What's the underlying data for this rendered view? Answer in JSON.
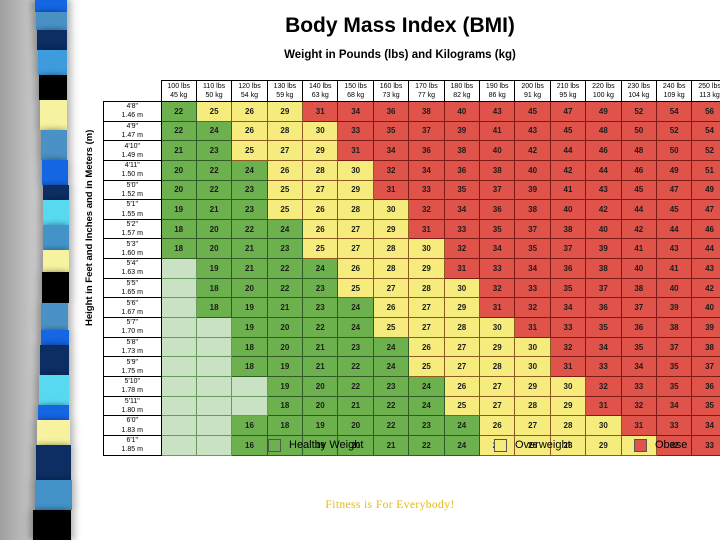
{
  "header": {
    "title": "Body Mass Index (BMI)",
    "subtitle": "Weight in Pounds (lbs) and Kilograms (kg)"
  },
  "footer": {
    "tagline": "Fitness is For Everybody!"
  },
  "decoration": {
    "ribbon_segments": [
      [
        "#1566e3",
        12
      ],
      [
        "#4a92c6",
        18
      ],
      [
        "#0d2e63",
        20
      ],
      [
        "#3e9cdc",
        25
      ],
      [
        "#000000",
        25
      ],
      [
        "#f6f2a0",
        30
      ],
      [
        "#4a92c6",
        30
      ],
      [
        "#1566e3",
        25
      ],
      [
        "#0d2e63",
        15
      ],
      [
        "#57d9f2",
        25
      ],
      [
        "#4393c9",
        25
      ],
      [
        "#f6f2a0",
        22
      ],
      [
        "#000000",
        31
      ],
      [
        "#4a92c6",
        27
      ],
      [
        "#1566e3",
        15
      ],
      [
        "#0d2e63",
        30
      ],
      [
        "#57d9f2",
        30
      ],
      [
        "#1566e3",
        15
      ],
      [
        "#f6f2a0",
        25
      ],
      [
        "#0d2e63",
        35
      ],
      [
        "#4393c9",
        30
      ],
      [
        "#000000",
        30
      ]
    ]
  },
  "chart_data": {
    "type": "table",
    "title": "Body Mass Index (BMI)",
    "subtitle": "Weight in Pounds (lbs) and Kilograms (kg)",
    "y_axis_label": "Height in Feet and Inches and in Meters (m)",
    "weight_columns": [
      [
        "100 lbs",
        "45 kg"
      ],
      [
        "110 lbs",
        "50 kg"
      ],
      [
        "120 lbs",
        "54 kg"
      ],
      [
        "130 lbs",
        "59 kg"
      ],
      [
        "140 lbs",
        "63 kg"
      ],
      [
        "150 lbs",
        "68 kg"
      ],
      [
        "160 lbs",
        "73 kg"
      ],
      [
        "170 lbs",
        "77 kg"
      ],
      [
        "180 lbs",
        "82 kg"
      ],
      [
        "190 lbs",
        "86 kg"
      ],
      [
        "200 lbs",
        "91 kg"
      ],
      [
        "210 lbs",
        "95 kg"
      ],
      [
        "220 lbs",
        "100 kg"
      ],
      [
        "230 lbs",
        "104 kg"
      ],
      [
        "240 lbs",
        "109 kg"
      ],
      [
        "250 lbs",
        "113 kg"
      ]
    ],
    "zone_colors": {
      "g": "#6db14f",
      "y": "#f6ec7d",
      "r": "#e0534a",
      "p": "#c9e2c4",
      "e": "#6db14f"
    },
    "rows": [
      {
        "ft": "4'8\"",
        "m": "1.46 m",
        "bmi": [
          22,
          25,
          26,
          29,
          31,
          34,
          36,
          38,
          40,
          43,
          45,
          47,
          49,
          52,
          54,
          56
        ],
        "zones": "gyyyrrrrrrrrrrrr"
      },
      {
        "ft": "4'9\"",
        "m": "1.47 m",
        "bmi": [
          22,
          24,
          26,
          28,
          30,
          33,
          35,
          37,
          39,
          41,
          43,
          45,
          48,
          50,
          52,
          54
        ],
        "zones": "ggyyyrrrrrrrrrrr"
      },
      {
        "ft": "4'10\"",
        "m": "1.49 m",
        "bmi": [
          21,
          23,
          25,
          27,
          29,
          31,
          34,
          36,
          38,
          40,
          42,
          44,
          46,
          48,
          50,
          52
        ],
        "zones": "ggyyyrrrrrrrrrrr"
      },
      {
        "ft": "4'11\"",
        "m": "1.50 m",
        "bmi": [
          20,
          22,
          24,
          26,
          28,
          30,
          32,
          34,
          36,
          38,
          40,
          42,
          44,
          46,
          49,
          51
        ],
        "zones": "gggyyyrrrrrrrrrr"
      },
      {
        "ft": "5'0\"",
        "m": "1.52 m",
        "bmi": [
          20,
          22,
          23,
          25,
          27,
          29,
          31,
          33,
          35,
          37,
          39,
          41,
          43,
          45,
          47,
          49
        ],
        "zones": "gggyyyrrrrrrrrrr"
      },
      {
        "ft": "5'1\"",
        "m": "1.55 m",
        "bmi": [
          19,
          21,
          23,
          25,
          26,
          28,
          30,
          32,
          34,
          36,
          38,
          40,
          42,
          44,
          45,
          47
        ],
        "zones": "gggyyyyrrrrrrrrr"
      },
      {
        "ft": "5'2\"",
        "m": "1.57 m",
        "bmi": [
          18,
          20,
          22,
          24,
          26,
          27,
          29,
          31,
          33,
          35,
          37,
          38,
          40,
          42,
          44,
          46
        ],
        "zones": "ggggyyyrrrrrrrrr"
      },
      {
        "ft": "5'3\"",
        "m": "1.60 m",
        "bmi": [
          18,
          20,
          21,
          23,
          25,
          27,
          28,
          30,
          32,
          34,
          35,
          37,
          39,
          41,
          43,
          44
        ],
        "zones": "ggggyyyyrrrrrrrr"
      },
      {
        "ft": "5'4\"",
        "m": "1.63 m",
        "bmi": [
          null,
          19,
          21,
          22,
          24,
          26,
          28,
          29,
          31,
          33,
          34,
          36,
          38,
          40,
          41,
          43
        ],
        "zones": "pggggyyyrrrrrrrr"
      },
      {
        "ft": "5'5\"",
        "m": "1.65 m",
        "bmi": [
          null,
          18,
          20,
          22,
          23,
          25,
          27,
          28,
          30,
          32,
          33,
          35,
          37,
          38,
          40,
          42
        ],
        "zones": "pggggyyyyrrrrrrr"
      },
      {
        "ft": "5'6\"",
        "m": "1.67 m",
        "bmi": [
          null,
          18,
          19,
          21,
          23,
          24,
          26,
          27,
          29,
          31,
          32,
          34,
          36,
          37,
          39,
          40
        ],
        "zones": "pgggggyyyrrrrrrr"
      },
      {
        "ft": "5'7\"",
        "m": "1.70 m",
        "bmi": [
          null,
          null,
          19,
          20,
          22,
          24,
          25,
          27,
          28,
          30,
          31,
          33,
          35,
          36,
          38,
          39
        ],
        "zones": "ppggggyyyyrrrrrr"
      },
      {
        "ft": "5'8\"",
        "m": "1.73 m",
        "bmi": [
          null,
          null,
          18,
          20,
          21,
          23,
          24,
          26,
          27,
          29,
          30,
          32,
          34,
          35,
          37,
          38
        ],
        "zones": "ppgggggyyyyrrrrr"
      },
      {
        "ft": "5'9\"",
        "m": "1.75 m",
        "bmi": [
          null,
          null,
          18,
          19,
          21,
          22,
          24,
          25,
          27,
          28,
          30,
          31,
          33,
          34,
          35,
          37
        ],
        "zones": "ppgggggyyyyrrrrr"
      },
      {
        "ft": "5'10\"",
        "m": "1.78 m",
        "bmi": [
          null,
          null,
          null,
          19,
          20,
          22,
          23,
          24,
          26,
          27,
          29,
          30,
          32,
          33,
          35,
          36
        ],
        "zones": "pppgggggyyyyrrrr"
      },
      {
        "ft": "5'11\"",
        "m": "1.80 m",
        "bmi": [
          null,
          null,
          null,
          18,
          20,
          21,
          22,
          24,
          25,
          27,
          28,
          29,
          31,
          32,
          34,
          35
        ],
        "zones": "pppgggggyyyyrrrr"
      },
      {
        "ft": "6'0\"",
        "m": "1.83 m",
        "bmi": [
          null,
          null,
          16,
          18,
          19,
          20,
          22,
          23,
          24,
          26,
          27,
          28,
          30,
          31,
          33,
          34
        ],
        "zones": "ppgggggggyyyyrrr"
      },
      {
        "ft": "6'1\"",
        "m": "1.85 m",
        "bmi": [
          null,
          null,
          16,
          null,
          19,
          20,
          21,
          22,
          24,
          25,
          26,
          28,
          29,
          30,
          32,
          33
        ],
        "zones": "ppgegggggyyyyyrr"
      }
    ],
    "legend": [
      {
        "name": "healthy-weight",
        "label": "Healthy Weight",
        "color": "#6db14f"
      },
      {
        "name": "overweight",
        "label": "Overweight",
        "color": "#f6ec7d"
      },
      {
        "name": "obese",
        "label": "Obese",
        "color": "#e0534a"
      }
    ]
  }
}
